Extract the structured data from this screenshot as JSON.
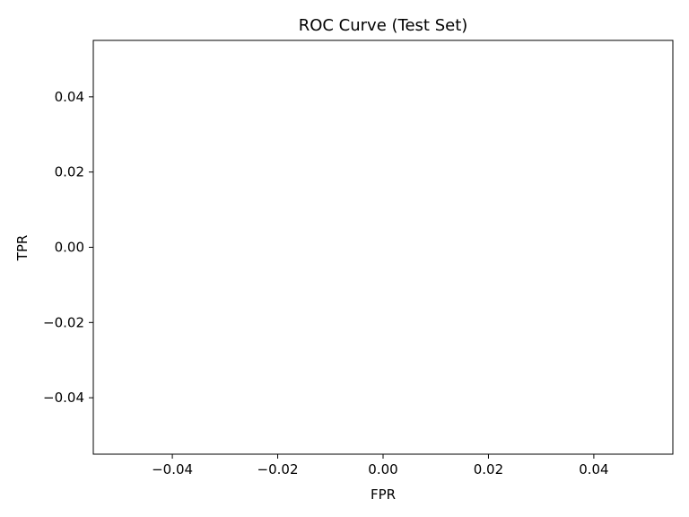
{
  "chart_data": {
    "type": "line",
    "title": "ROC Curve (Test Set)",
    "xlabel": "FPR",
    "ylabel": "TPR",
    "xlim": [
      -0.055,
      0.055
    ],
    "ylim": [
      -0.055,
      0.055
    ],
    "xticks": [
      -0.04,
      -0.02,
      0.0,
      0.02,
      0.04
    ],
    "yticks": [
      -0.04,
      -0.02,
      0.0,
      0.02,
      0.04
    ],
    "xtick_labels": [
      "−0.04",
      "−0.02",
      "0.00",
      "0.02",
      "0.04"
    ],
    "ytick_labels": [
      "−0.04",
      "−0.02",
      "0.00",
      "0.02",
      "0.04"
    ],
    "grid": false,
    "series": []
  }
}
